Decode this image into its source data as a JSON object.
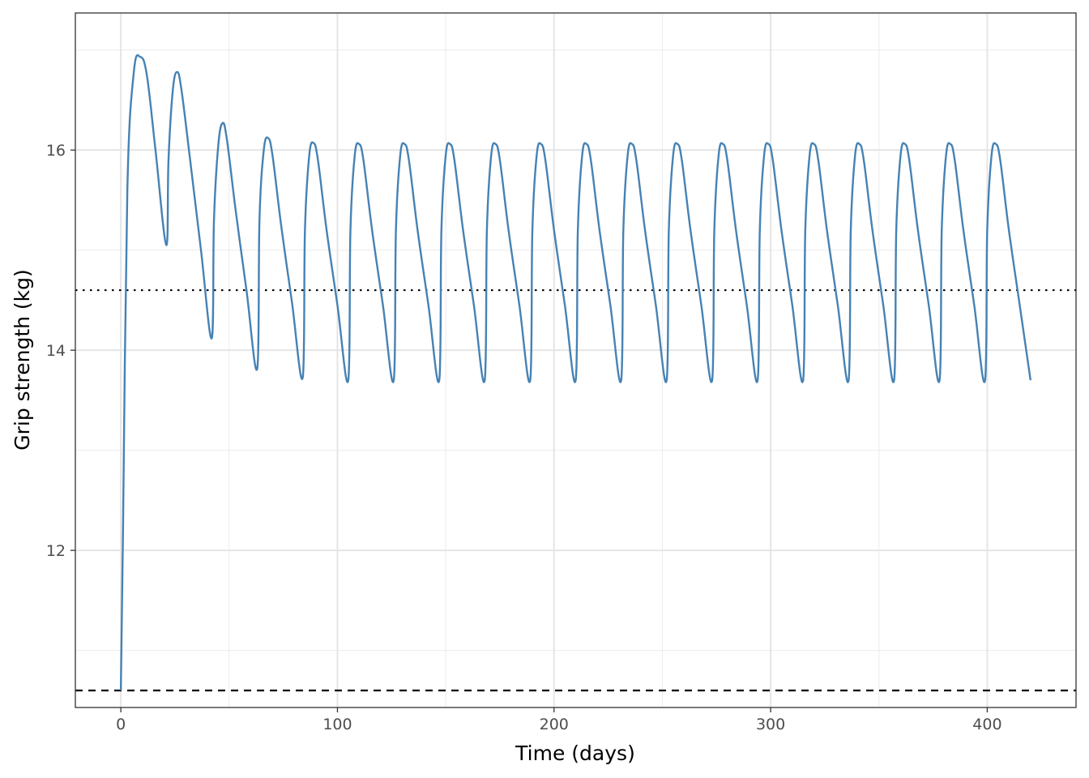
{
  "chart_data": {
    "type": "line",
    "title": "",
    "xlabel": "Time (days)",
    "ylabel": "Grip strength (kg)",
    "xlim": [
      -21,
      441
    ],
    "ylim": [
      10.43,
      17.37
    ],
    "x_ticks": [
      0,
      100,
      200,
      300,
      400
    ],
    "y_ticks": [
      12,
      14,
      16
    ],
    "x_tick_labels": [
      "0",
      "100",
      "200",
      "300",
      "400"
    ],
    "y_tick_labels": [
      "12",
      "14",
      "16"
    ],
    "grid": true,
    "legend": "none",
    "line_color": "#4682b4",
    "reference_lines": [
      {
        "style": "dotted",
        "y": 14.6
      },
      {
        "style": "dashed",
        "y": 10.6
      }
    ],
    "series": [
      {
        "x": [
          0,
          1,
          3,
          6,
          9,
          12,
          16,
          21,
          22,
          24,
          26,
          28,
          32,
          37,
          42,
          43,
          45,
          47,
          49,
          53,
          58,
          63,
          64,
          66,
          68,
          70,
          74,
          79,
          84,
          85,
          87,
          89,
          91,
          95,
          100,
          105,
          106,
          108,
          110,
          112,
          116,
          121,
          126,
          127,
          129,
          131,
          133,
          137,
          142,
          147,
          148,
          150,
          152,
          154,
          158,
          163,
          168,
          169,
          171,
          173,
          175,
          179,
          184,
          189,
          190,
          192,
          194,
          196,
          200,
          205,
          210,
          211,
          213,
          215,
          217,
          221,
          226,
          231,
          232,
          234,
          236,
          238,
          242,
          247,
          252,
          253,
          255,
          257,
          259,
          263,
          268,
          273,
          274,
          276,
          278,
          280,
          284,
          289,
          294,
          295,
          297,
          299,
          301,
          305,
          310,
          315,
          316,
          318,
          320,
          322,
          326,
          331,
          336,
          337,
          339,
          341,
          343,
          347,
          352,
          357,
          358,
          360,
          362,
          364,
          368,
          373,
          378,
          379,
          381,
          383,
          385,
          389,
          394,
          399,
          400,
          402,
          404,
          406,
          410,
          415,
          420
        ],
        "y": [
          10.6,
          12.2,
          15.6,
          16.78,
          16.93,
          16.75,
          16.0,
          15.05,
          15.9,
          16.6,
          16.78,
          16.6,
          15.9,
          15.0,
          14.12,
          15.3,
          16.05,
          16.27,
          16.1,
          15.4,
          14.6,
          13.82,
          15.3,
          16.0,
          16.12,
          15.95,
          15.25,
          14.48,
          13.73,
          15.2,
          15.95,
          16.07,
          15.9,
          15.2,
          14.45,
          13.7,
          15.2,
          15.95,
          16.06,
          15.9,
          15.2,
          14.45,
          13.7,
          15.2,
          15.95,
          16.06,
          15.9,
          15.2,
          14.45,
          13.7,
          15.2,
          15.95,
          16.06,
          15.9,
          15.2,
          14.45,
          13.7,
          15.2,
          15.95,
          16.06,
          15.9,
          15.2,
          14.45,
          13.7,
          15.2,
          15.95,
          16.06,
          15.9,
          15.2,
          14.45,
          13.7,
          15.2,
          15.95,
          16.06,
          15.9,
          15.2,
          14.45,
          13.7,
          15.2,
          15.95,
          16.06,
          15.9,
          15.2,
          14.45,
          13.7,
          15.2,
          15.95,
          16.06,
          15.9,
          15.2,
          14.45,
          13.7,
          15.2,
          15.95,
          16.06,
          15.9,
          15.2,
          14.45,
          13.7,
          15.2,
          15.95,
          16.06,
          15.9,
          15.2,
          14.45,
          13.7,
          15.2,
          15.95,
          16.06,
          15.9,
          15.2,
          14.45,
          13.7,
          15.2,
          15.95,
          16.06,
          15.9,
          15.2,
          14.45,
          13.7,
          15.2,
          15.95,
          16.06,
          15.9,
          15.2,
          14.45,
          13.7,
          15.2,
          15.95,
          16.06,
          15.9,
          15.2,
          14.45,
          13.7,
          15.2,
          15.95,
          16.06,
          15.9,
          15.2,
          14.45,
          13.7
        ]
      }
    ]
  }
}
